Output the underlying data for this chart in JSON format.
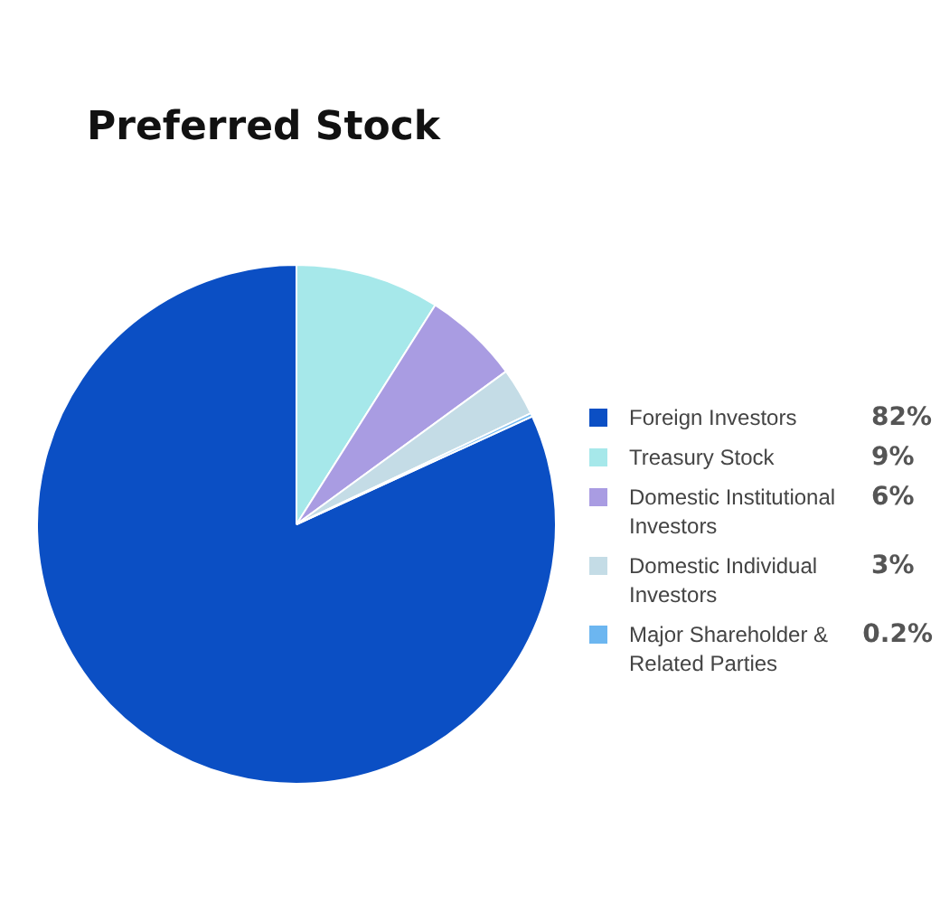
{
  "chart_data": {
    "type": "pie",
    "title": "Preferred Stock",
    "categories": [
      "Foreign Investors",
      "Treasury Stock",
      "Domestic Institutional Investors",
      "Domestic Individual Investors",
      "Major Shareholder & Related Parties"
    ],
    "values": [
      82,
      9,
      6,
      3,
      0.2
    ],
    "colors": [
      "#0b4fc4",
      "#a6e8ea",
      "#a99ce2",
      "#c4dce6",
      "#6cb6f0"
    ],
    "value_labels": [
      "82%",
      "9%",
      "6%",
      "3%",
      "0.2%"
    ],
    "legend": "right"
  }
}
